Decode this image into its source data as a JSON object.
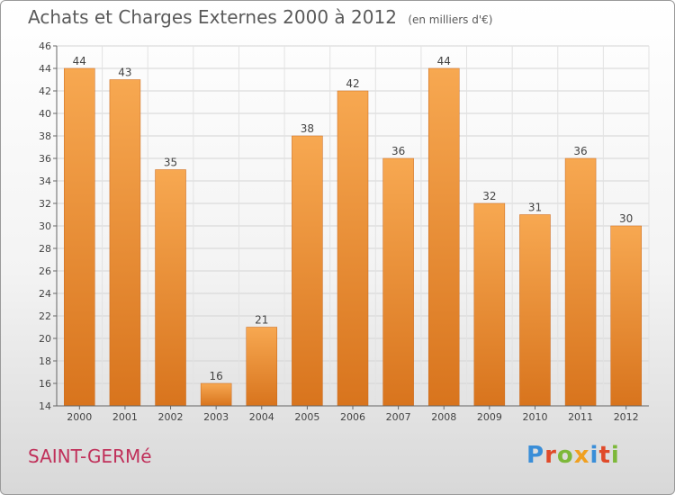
{
  "header": {
    "title": "Achats et Charges Externes 2000 à 2012",
    "subtitle": "(en milliers d'€)"
  },
  "footer": {
    "place": "SAINT-GERMé",
    "logo": "Proxiti"
  },
  "colors": {
    "bar_top": "#f7a851",
    "bar_bottom": "#d8741d",
    "place": "#c0305a",
    "logo_letters": [
      "#3a8ed8",
      "#e04a2a",
      "#7db83a",
      "#f0a020",
      "#3a8ed8",
      "#e04a2a",
      "#7db83a"
    ]
  },
  "chart_data": {
    "type": "bar",
    "title": "Achats et Charges Externes 2000 à 2012",
    "subtitle": "(en milliers d'€)",
    "xlabel": "",
    "ylabel": "",
    "categories": [
      "2000",
      "2001",
      "2002",
      "2003",
      "2004",
      "2005",
      "2006",
      "2007",
      "2008",
      "2009",
      "2010",
      "2011",
      "2012"
    ],
    "values": [
      44,
      43,
      35,
      16,
      21,
      38,
      42,
      36,
      44,
      32,
      31,
      36,
      30
    ],
    "ylim": [
      14,
      46
    ],
    "yticks": [
      14,
      16,
      18,
      20,
      22,
      24,
      26,
      28,
      30,
      32,
      34,
      36,
      38,
      40,
      42,
      44,
      46
    ],
    "grid": true,
    "legend": "none"
  }
}
